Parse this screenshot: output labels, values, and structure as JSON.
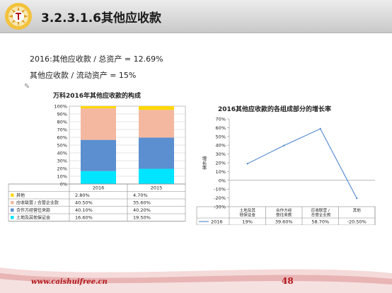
{
  "header": {
    "title": "3.2.3.1.6其他应收款"
  },
  "formulas": [
    "2016:其他应收款 / 总资产 = 12.69%",
    "其他应收款 / 流动资产 = 15%"
  ],
  "colors": {
    "header_accent": "#b1161c",
    "series_other": "#ffd700",
    "series_affiliate": "#f4b8a0",
    "series_partner": "#5b8fd0",
    "series_deposit": "#00e5ff",
    "line": "#5b8fd0"
  },
  "chart_data": [
    {
      "type": "bar",
      "stacked": true,
      "title": "万科2016年其他应收款的构成",
      "categories": [
        "2016",
        "2015"
      ],
      "series": [
        {
          "name": "其他",
          "values": [
            2.8,
            4.7
          ],
          "labels": [
            "2.80%",
            "4.70%"
          ],
          "color": "#ffd700"
        },
        {
          "name": "应收联营 / 合营企业款",
          "values": [
            40.5,
            35.6
          ],
          "labels": [
            "40.50%",
            "35.60%"
          ],
          "color": "#f4b8a0"
        },
        {
          "name": "合作方经营往来款",
          "values": [
            40.1,
            40.2
          ],
          "labels": [
            "40.10%",
            "40.20%"
          ],
          "color": "#5b8fd0"
        },
        {
          "name": "土地及其他保证金",
          "values": [
            16.6,
            19.5
          ],
          "labels": [
            "16.60%",
            "19.50%"
          ],
          "color": "#00e5ff"
        }
      ],
      "yticks": [
        "0%",
        "10%",
        "20%",
        "30%",
        "40%",
        "50%",
        "60%",
        "70%",
        "80%",
        "90%",
        "100%"
      ],
      "ylim": [
        0,
        100
      ],
      "grid": true,
      "legend": "data-table"
    },
    {
      "type": "line",
      "title": "2016其他应收款的各组成部分的增长率",
      "ylabel": "增长率",
      "categories": [
        "土地及其他保证金",
        "合作方经营往来款",
        "应收联营 / 合营企业款",
        "其他"
      ],
      "series": [
        {
          "name": "2016",
          "values": [
            19,
            39.6,
            58.7,
            -20.5
          ],
          "labels": [
            "19%",
            "39.60%",
            "58.70%",
            "-20.50%"
          ],
          "color": "#5b8fd0"
        }
      ],
      "yticks": [
        "-30%",
        "-20%",
        "-10%",
        "0%",
        "10%",
        "20%",
        "30%",
        "40%",
        "50%",
        "60%",
        "70%"
      ],
      "ylim": [
        -30,
        70
      ],
      "grid": false,
      "legend": "data-table"
    }
  ],
  "footer": {
    "url": "www.caishuifree.cn",
    "page_number": "48"
  }
}
